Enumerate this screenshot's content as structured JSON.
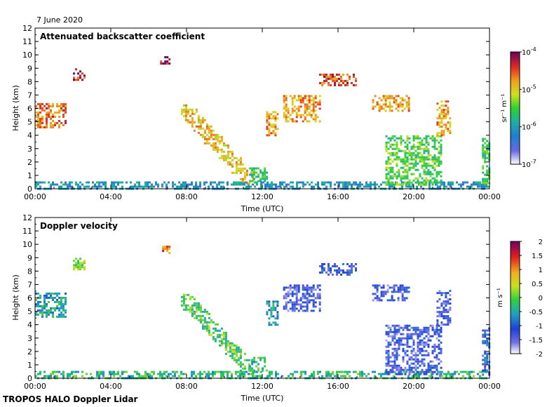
{
  "date_label": "7 June 2020",
  "footer_label": "TROPOS HALO Doppler Lidar",
  "chart_data": [
    {
      "type": "heatmap",
      "title": "Attenuated backscatter coefficient",
      "xlabel": "Time (UTC)",
      "ylabel": "Height (km)",
      "x_ticks": [
        "00:00",
        "04:00",
        "08:00",
        "12:00",
        "16:00",
        "20:00",
        "00:00"
      ],
      "y_ticks": [
        "0",
        "1",
        "2",
        "3",
        "4",
        "5",
        "6",
        "7",
        "8",
        "9",
        "10",
        "11",
        "12"
      ],
      "ylim": [
        0,
        12
      ],
      "xlim_hours": [
        0,
        24
      ],
      "colorbar": {
        "label": "sr⁻¹ m⁻¹",
        "scale": "log",
        "tick_labels": [
          {
            "base": "10",
            "exp": "-7",
            "value": -7
          },
          {
            "base": "10",
            "exp": "-6",
            "value": -6
          },
          {
            "base": "10",
            "exp": "-5",
            "value": -5
          },
          {
            "base": "10",
            "exp": "-4",
            "value": -4
          }
        ],
        "range_log10": [
          -7,
          -4
        ]
      },
      "features": [
        {
          "t0": 0.0,
          "t1": 24.0,
          "h0": 0.0,
          "h1": 0.55,
          "v": 0.3
        },
        {
          "t0": 0.0,
          "t1": 1.6,
          "h0": 4.6,
          "h1": 6.4,
          "v": 0.8
        },
        {
          "t0": 2.0,
          "t1": 2.6,
          "h0": 8.2,
          "h1": 9.0,
          "v": 0.9
        },
        {
          "t0": 6.6,
          "t1": 7.1,
          "h0": 9.4,
          "h1": 9.9,
          "v": 0.95
        },
        {
          "t0": 7.7,
          "t1": 11.5,
          "h0": 0.4,
          "h1": 6.3,
          "v": 0.7,
          "slant": true
        },
        {
          "t0": 11.3,
          "t1": 12.3,
          "h0": 0.5,
          "h1": 1.6,
          "v": 0.45
        },
        {
          "t0": 12.2,
          "t1": 12.8,
          "h0": 4.0,
          "h1": 5.8,
          "v": 0.75
        },
        {
          "t0": 13.1,
          "t1": 15.0,
          "h0": 5.0,
          "h1": 7.0,
          "v": 0.75
        },
        {
          "t0": 15.0,
          "t1": 17.0,
          "h0": 7.8,
          "h1": 8.6,
          "v": 0.85
        },
        {
          "t0": 17.8,
          "t1": 19.8,
          "h0": 5.8,
          "h1": 7.0,
          "v": 0.75
        },
        {
          "t0": 18.5,
          "t1": 21.5,
          "h0": 0.3,
          "h1": 4.0,
          "v": 0.5
        },
        {
          "t0": 21.2,
          "t1": 21.9,
          "h0": 4.0,
          "h1": 6.6,
          "v": 0.75
        },
        {
          "t0": 23.6,
          "t1": 24.0,
          "h0": 0.3,
          "h1": 3.8,
          "v": 0.45
        }
      ]
    },
    {
      "type": "heatmap",
      "title": "Doppler velocity",
      "xlabel": "Time (UTC)",
      "ylabel": "Height (km)",
      "x_ticks": [
        "00:00",
        "04:00",
        "08:00",
        "12:00",
        "16:00",
        "20:00",
        "00:00"
      ],
      "y_ticks": [
        "0",
        "1",
        "2",
        "3",
        "4",
        "5",
        "6",
        "7",
        "8",
        "9",
        "10",
        "11",
        "12"
      ],
      "ylim": [
        0,
        12
      ],
      "xlim_hours": [
        0,
        24
      ],
      "colorbar": {
        "label": "m s⁻¹",
        "scale": "linear",
        "tick_labels": [
          "-2",
          "-1.5",
          "-1",
          "-0.5",
          "0",
          "0.5",
          "1",
          "1.5",
          "2"
        ],
        "range": [
          -2,
          2
        ]
      },
      "features": [
        {
          "t0": 0.0,
          "t1": 24.0,
          "h0": 0.0,
          "h1": 0.55,
          "v": 0.45
        },
        {
          "t0": 0.0,
          "t1": 1.6,
          "h0": 4.6,
          "h1": 6.4,
          "v": 0.4
        },
        {
          "t0": 2.0,
          "t1": 2.6,
          "h0": 8.2,
          "h1": 9.0,
          "v": 0.55
        },
        {
          "t0": 6.6,
          "t1": 7.1,
          "h0": 9.4,
          "h1": 9.9,
          "v": 0.8
        },
        {
          "t0": 7.7,
          "t1": 11.5,
          "h0": 0.4,
          "h1": 6.3,
          "v": 0.5,
          "slant": true
        },
        {
          "t0": 11.3,
          "t1": 12.3,
          "h0": 0.5,
          "h1": 1.6,
          "v": 0.45
        },
        {
          "t0": 12.2,
          "t1": 12.8,
          "h0": 4.0,
          "h1": 5.8,
          "v": 0.35
        },
        {
          "t0": 13.1,
          "t1": 15.0,
          "h0": 5.0,
          "h1": 7.0,
          "v": 0.2
        },
        {
          "t0": 15.0,
          "t1": 17.0,
          "h0": 7.8,
          "h1": 8.6,
          "v": 0.25
        },
        {
          "t0": 17.8,
          "t1": 19.8,
          "h0": 5.8,
          "h1": 7.0,
          "v": 0.2
        },
        {
          "t0": 18.5,
          "t1": 21.5,
          "h0": 0.3,
          "h1": 4.0,
          "v": 0.2
        },
        {
          "t0": 21.2,
          "t1": 21.9,
          "h0": 4.0,
          "h1": 6.6,
          "v": 0.2
        },
        {
          "t0": 23.6,
          "t1": 24.0,
          "h0": 0.3,
          "h1": 3.8,
          "v": 0.25
        }
      ]
    }
  ]
}
